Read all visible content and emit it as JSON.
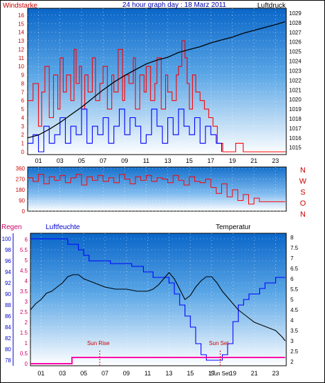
{
  "colors": {
    "wind": "#ff0000",
    "gust": "#0000ff",
    "pressure": "#000000",
    "direction": "#ff0000",
    "rain": "#ff00aa",
    "humidity": "#0000ff",
    "temperature": "#000000",
    "header_title": "#0000aa",
    "left_label": "#cc0000",
    "rain_label": "#cc0066",
    "humidity_label": "#0000cc",
    "compass": "#cc0000",
    "sun": "#cc0000"
  },
  "chart_data": [
    {
      "id": "wind_pressure",
      "type": "line",
      "title": "24 hour graph day : 18 Marz 2011",
      "left_label": "Windstarke",
      "right_label": "Luftdruck",
      "x_ticks": [
        "01",
        "03",
        "05",
        "07",
        "09",
        "11",
        "13",
        "15",
        "17",
        "19",
        "21",
        "23"
      ],
      "x_range": [
        0,
        24
      ],
      "y_left_ticks": [
        0,
        1,
        2,
        3,
        4,
        5,
        6,
        7,
        8,
        9,
        10,
        11,
        12,
        13,
        14,
        15,
        16
      ],
      "y_left_range": [
        0,
        16.8
      ],
      "y_right_ticks": [
        1015,
        1016,
        1017,
        1018,
        1019,
        1020,
        1021,
        1022,
        1023,
        1024,
        1025,
        1026,
        1027,
        1028,
        1029
      ],
      "y_right_range": [
        1014.55,
        1029.5
      ],
      "series": [
        {
          "key": "wind",
          "axis": "left",
          "hours": [
            0.0,
            0.5,
            1.0,
            1.3,
            1.6,
            2.0,
            2.4,
            2.8,
            3.0,
            3.3,
            3.6,
            4.0,
            4.3,
            4.5,
            4.8,
            5.0,
            5.3,
            5.6,
            6.0,
            6.3,
            6.7,
            7.0,
            7.4,
            7.8,
            8.0,
            8.4,
            8.8,
            9.0,
            9.4,
            9.8,
            10.0,
            10.4,
            10.8,
            11.0,
            11.4,
            11.8,
            12.0,
            12.4,
            12.8,
            13.0,
            13.4,
            13.8,
            14.0,
            14.3,
            14.6,
            14.8,
            15.0,
            15.3,
            15.6,
            16.0,
            16.4,
            16.8,
            17.2,
            17.6,
            17.9,
            18.1,
            18.4,
            18.6,
            19.0,
            19.3,
            19.6,
            20.0,
            21.0,
            22.0,
            23.0,
            23.95
          ],
          "values": [
            6,
            8,
            3,
            7,
            10,
            4,
            9,
            5,
            11,
            7,
            9,
            6,
            12,
            8,
            10,
            5,
            9,
            7,
            11,
            6,
            8,
            10,
            5,
            9,
            7,
            12,
            6,
            9,
            8,
            11,
            5,
            9,
            7,
            10,
            6,
            8,
            11,
            5,
            9,
            7,
            6,
            9,
            10,
            13,
            11,
            8,
            5,
            9,
            7,
            6,
            5,
            4,
            3,
            1,
            1,
            0,
            0,
            0,
            0,
            1,
            1,
            0,
            0,
            0,
            0,
            0
          ]
        },
        {
          "key": "gust",
          "axis": "left",
          "hours": [
            0.0,
            0.5,
            1.0,
            1.5,
            2.0,
            2.5,
            3.0,
            3.5,
            4.0,
            4.5,
            5.0,
            5.5,
            6.0,
            6.5,
            7.0,
            7.5,
            8.0,
            8.5,
            9.0,
            9.5,
            10.0,
            10.5,
            11.0,
            11.5,
            12.0,
            12.5,
            13.0,
            13.5,
            14.0,
            14.5,
            15.0,
            15.5,
            16.0,
            16.5,
            17.0,
            17.5,
            18.0
          ],
          "values": [
            1,
            2,
            0,
            3,
            1,
            2,
            4,
            1,
            3,
            2,
            5,
            1,
            3,
            2,
            4,
            1,
            3,
            5,
            2,
            4,
            3,
            1,
            2,
            5,
            3,
            1,
            4,
            2,
            5,
            3,
            2,
            4,
            1,
            3,
            2,
            1,
            0
          ]
        },
        {
          "key": "pressure",
          "axis": "right",
          "hours": [
            0.0,
            1.0,
            2.0,
            3.0,
            4.0,
            5.0,
            6.0,
            7.0,
            8.0,
            9.0,
            10.0,
            11.0,
            12.0,
            13.0,
            14.0,
            15.0,
            16.0,
            17.0,
            18.0,
            19.0,
            20.0,
            21.0,
            22.0,
            23.0,
            23.9
          ],
          "values": [
            1016.0,
            1016.3,
            1016.9,
            1017.6,
            1018.4,
            1019.2,
            1020.1,
            1021.0,
            1021.8,
            1022.5,
            1023.1,
            1023.7,
            1024.1,
            1024.4,
            1024.9,
            1025.2,
            1025.5,
            1025.9,
            1026.2,
            1026.5,
            1026.9,
            1027.2,
            1027.5,
            1027.8,
            1028.1
          ]
        }
      ]
    },
    {
      "id": "direction",
      "type": "line",
      "compass": [
        "N",
        "W",
        "S",
        "O",
        "N"
      ],
      "x_range": [
        0,
        24
      ],
      "y_ticks": [
        0,
        90,
        180,
        270,
        360
      ],
      "y_range": [
        0,
        360
      ],
      "series": [
        {
          "key": "direction",
          "hours": [
            0.0,
            0.5,
            1.0,
            1.5,
            2.0,
            2.5,
            3.0,
            3.5,
            4.0,
            4.5,
            5.0,
            5.5,
            6.0,
            6.5,
            7.0,
            7.5,
            8.0,
            8.5,
            9.0,
            9.5,
            10.0,
            10.5,
            11.0,
            11.5,
            12.0,
            12.5,
            13.0,
            13.5,
            14.0,
            14.5,
            15.0,
            15.5,
            16.0,
            16.5,
            17.0,
            17.5,
            18.0,
            18.5,
            19.0,
            19.5,
            20.0,
            20.5,
            21.0,
            21.5,
            22.0,
            22.5,
            23.0,
            23.9
          ],
          "values": [
            280,
            250,
            310,
            230,
            290,
            260,
            300,
            240,
            280,
            310,
            220,
            290,
            260,
            300,
            250,
            280,
            240,
            310,
            270,
            230,
            290,
            260,
            300,
            250,
            280,
            270,
            240,
            300,
            260,
            220,
            290,
            250,
            240,
            270,
            200,
            150,
            230,
            120,
            180,
            90,
            140,
            60,
            110,
            80,
            80,
            80,
            80,
            80
          ]
        }
      ]
    },
    {
      "id": "rain_humidity_temperature",
      "type": "line",
      "rain_label": "Regen",
      "humidity_label": "Luftfeuchte",
      "temperature_label": "Temperatur",
      "x_ticks": [
        "01",
        "03",
        "05",
        "07",
        "09",
        "11",
        "13",
        "15",
        "17",
        "19",
        "21",
        "23"
      ],
      "x_range": [
        0,
        24
      ],
      "humidity_ticks": [
        78,
        80,
        82,
        84,
        86,
        88,
        90,
        92,
        94,
        96,
        98,
        100
      ],
      "humidity_range": [
        77,
        101
      ],
      "rain_ticks": [
        0,
        0.5,
        1,
        1.5,
        2,
        2.5,
        3,
        3.5,
        4,
        4.5,
        5,
        5.5,
        6
      ],
      "rain_range": [
        -0.1,
        6.3
      ],
      "temperature_ticks": [
        2,
        2.5,
        3,
        3.5,
        4,
        4.5,
        5,
        5.5,
        6,
        6.5,
        7,
        7.5,
        8
      ],
      "temperature_range": [
        1.8,
        8.2
      ],
      "sun_rise_label": "Sun Rise",
      "sun_set_label": "Sun Set",
      "sun_rise_hour": 6.5,
      "sun_set_hour": 17.8,
      "series": [
        {
          "key": "humidity",
          "axis": "humidity",
          "hours": [
            0.0,
            3.5,
            3.5,
            4.5,
            5.0,
            5.5,
            6.5,
            7.5,
            8.5,
            9.5,
            10.0,
            10.6,
            11.5,
            12.5,
            13.0,
            13.5,
            14.0,
            14.5,
            15.0,
            15.5,
            16.0,
            16.5,
            17.0,
            17.5,
            18.0,
            18.5,
            19.0,
            19.5,
            20.0,
            20.5,
            21.0,
            21.5,
            22.0,
            23.0,
            23.9
          ],
          "values": [
            100,
            100,
            99,
            98,
            97,
            96,
            96,
            95.5,
            95.5,
            95,
            95,
            94,
            93,
            93,
            92,
            90,
            88,
            86,
            84,
            81,
            79,
            78,
            78,
            78,
            79,
            81,
            85,
            88,
            89,
            90,
            90,
            91,
            92,
            93,
            93
          ]
        },
        {
          "key": "temperature",
          "axis": "temperature",
          "hours": [
            0.0,
            0.5,
            1.0,
            1.5,
            2.0,
            2.5,
            3.0,
            3.5,
            4.0,
            4.5,
            5.0,
            5.5,
            6.0,
            6.5,
            7.0,
            8.0,
            9.0,
            10.0,
            11.0,
            11.5,
            12.0,
            12.5,
            13.0,
            13.5,
            14.0,
            14.5,
            15.0,
            15.5,
            16.0,
            16.5,
            17.0,
            17.5,
            18.0,
            18.5,
            19.0,
            19.5,
            20.0,
            21.0,
            22.0,
            23.0,
            23.6,
            23.9
          ],
          "values": [
            4.5,
            4.8,
            5.0,
            5.3,
            5.4,
            5.6,
            5.8,
            6.1,
            6.2,
            6.2,
            6.0,
            5.9,
            5.8,
            5.7,
            5.6,
            5.5,
            5.5,
            5.4,
            5.4,
            5.5,
            5.7,
            6.0,
            6.3,
            6.0,
            5.5,
            5.0,
            5.2,
            5.6,
            5.9,
            6.1,
            6.1,
            5.8,
            5.4,
            5.1,
            4.8,
            4.5,
            4.3,
            3.9,
            3.7,
            3.5,
            3.2,
            3.0
          ]
        },
        {
          "key": "rain",
          "axis": "rain",
          "hours": [
            0.0,
            3.9,
            3.9,
            23.9
          ],
          "values": [
            0,
            0,
            0.3,
            0.3
          ]
        }
      ]
    }
  ]
}
